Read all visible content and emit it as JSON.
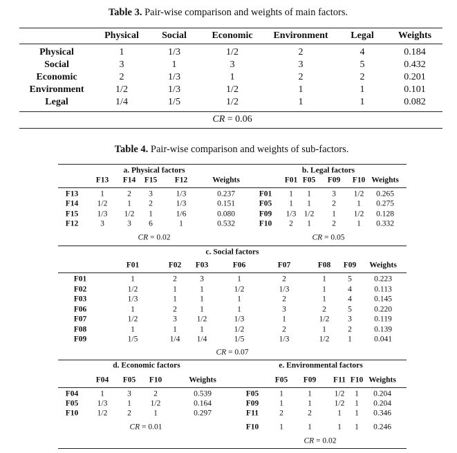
{
  "table3": {
    "caption_label": "Table 3.",
    "caption_text": "Pair-wise comparison and weights of main factors.",
    "header": [
      "Physical",
      "Social",
      "Economic",
      "Environment",
      "Legal",
      "Weights"
    ],
    "rows": [
      [
        "Physical",
        "1",
        "1/3",
        "1/2",
        "2",
        "4",
        "0.184"
      ],
      [
        "Social",
        "3",
        "1",
        "3",
        "3",
        "5",
        "0.432"
      ],
      [
        "Economic",
        "2",
        "1/3",
        "1",
        "2",
        "2",
        "0.201"
      ],
      [
        "Environment",
        "1/2",
        "1/3",
        "1/2",
        "1",
        "1",
        "0.101"
      ],
      [
        "Legal",
        "1/4",
        "1/5",
        "1/2",
        "1",
        "1",
        "0.082"
      ]
    ],
    "cr": {
      "label": "CR",
      "value": "= 0.06"
    }
  },
  "table4": {
    "caption_label": "Table 4.",
    "caption_text": "Pair-wise comparison and weights of sub-factors.",
    "panels": [
      {
        "title": "a. Physical factors",
        "header": [
          "F13",
          "F14",
          "F15",
          "F12",
          "Weights"
        ],
        "rows": [
          [
            "F13",
            "1",
            "2",
            "3",
            "1/3",
            "0.237"
          ],
          [
            "F14",
            "1/2",
            "1",
            "2",
            "1/3",
            "0.151"
          ],
          [
            "F15",
            "1/3",
            "1/2",
            "1",
            "1/6",
            "0.080"
          ],
          [
            "F12",
            "3",
            "3",
            "6",
            "1",
            "0.532"
          ]
        ],
        "cr": {
          "label": "CR",
          "value": "= 0.02"
        }
      },
      {
        "title": "b. Legal factors",
        "header": [
          "F01",
          "F05",
          "F09",
          "F10",
          "Weights"
        ],
        "rows": [
          [
            "F01",
            "1",
            "1",
            "3",
            "1/2",
            "0.265"
          ],
          [
            "F05",
            "1",
            "1",
            "2",
            "1",
            "0.275"
          ],
          [
            "F09",
            "1/3",
            "1/2",
            "1",
            "1/2",
            "0.128"
          ],
          [
            "F10",
            "2",
            "1",
            "2",
            "1",
            "0.332"
          ]
        ],
        "cr": {
          "label": "CR",
          "value": "= 0.05"
        }
      },
      {
        "title": "c. Social factors",
        "header": [
          "F01",
          "F02",
          "F03",
          "F06",
          "F07",
          "F08",
          "F09",
          "Weights"
        ],
        "rows": [
          [
            "F01",
            "1",
            "2",
            "3",
            "1",
            "2",
            "1",
            "5",
            "0.223"
          ],
          [
            "F02",
            "1/2",
            "1",
            "1",
            "1/2",
            "1/3",
            "1",
            "4",
            "0.113"
          ],
          [
            "F03",
            "1/3",
            "1",
            "1",
            "1",
            "2",
            "1",
            "4",
            "0.145"
          ],
          [
            "F06",
            "1",
            "2",
            "1",
            "1",
            "3",
            "2",
            "5",
            "0.220"
          ],
          [
            "F07",
            "1/2",
            "3",
            "1/2",
            "1/3",
            "1",
            "1/2",
            "3",
            "0.119"
          ],
          [
            "F08",
            "1",
            "1",
            "1",
            "1/2",
            "2",
            "1",
            "2",
            "0.139"
          ],
          [
            "F09",
            "1/5",
            "1/4",
            "1/4",
            "1/5",
            "1/3",
            "1/2",
            "1",
            "0.041"
          ]
        ],
        "cr": {
          "label": "CR",
          "value": "= 0.07"
        }
      },
      {
        "title": "d. Economic factors",
        "header": [
          "F04",
          "F05",
          "F10",
          "Weights"
        ],
        "rows": [
          [
            "F04",
            "1",
            "3",
            "2",
            "0.539"
          ],
          [
            "F05",
            "1/3",
            "1",
            "1/2",
            "0.164"
          ],
          [
            "F10",
            "1/2",
            "2",
            "1",
            "0.297"
          ]
        ],
        "cr": {
          "label": "CR",
          "value": "= 0.01"
        }
      },
      {
        "title": "e. Environmental factors",
        "header": [
          "F05",
          "F09",
          "F11",
          "F10",
          "Weights"
        ],
        "rows": [
          [
            "F05",
            "1",
            "1",
            "1/2",
            "1",
            "0.204"
          ],
          [
            "F09",
            "1",
            "1",
            "1/2",
            "1",
            "0.204"
          ],
          [
            "F11",
            "2",
            "2",
            "1",
            "1",
            "0.346"
          ],
          [
            "F10",
            "1",
            "1",
            "1",
            "1",
            "0.246"
          ]
        ],
        "cr": {
          "label": "CR",
          "value": "= 0.02"
        }
      }
    ]
  }
}
